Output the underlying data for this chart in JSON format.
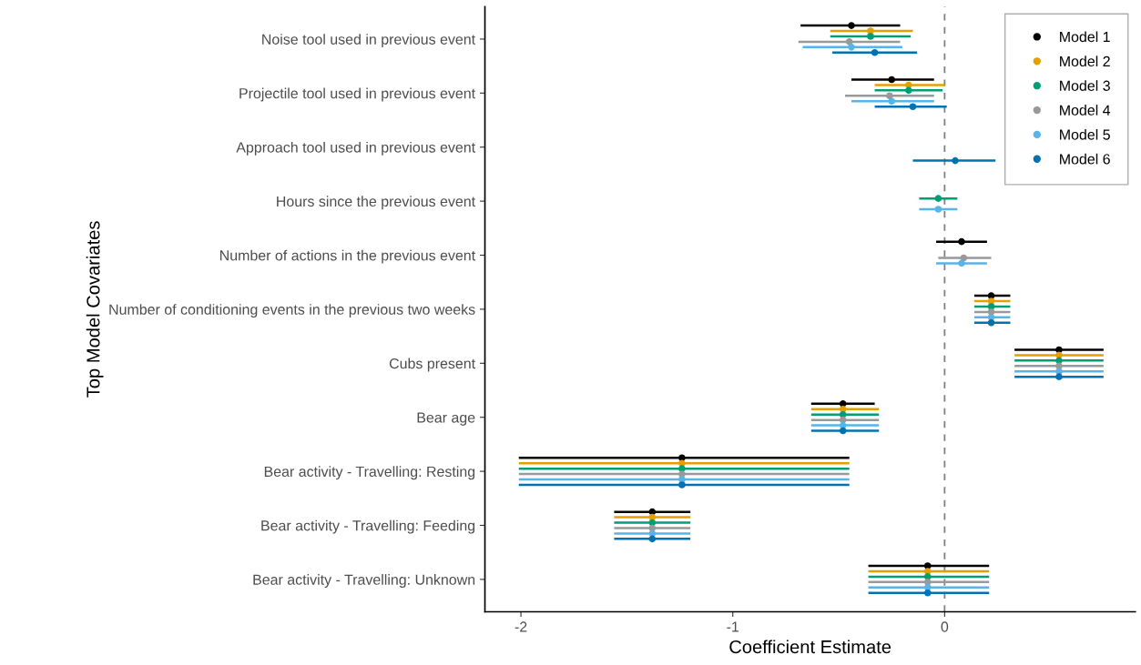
{
  "chart_data": {
    "type": "scatter",
    "orientation": "horizontal",
    "xlabel": "Coefficient Estimate",
    "ylabel": "Top Model Covariates",
    "categories": [
      "Noise tool used in previous event",
      "Projectile tool used in previous event",
      "Approach tool used in previous event",
      "Hours since the previous event",
      "Number of actions in the previous event",
      "Number of conditioning events in the previous two weeks",
      "Cubs present",
      "Bear age",
      "Bear activity - Travelling: Resting",
      "Bear activity - Travelling: Feeding",
      "Bear activity - Travelling: Unknown"
    ],
    "series": [
      {
        "name": "Model 1",
        "color": "#000000",
        "values": [
          -0.44,
          -0.25,
          null,
          null,
          0.08,
          0.22,
          0.54,
          -0.48,
          -1.24,
          -1.38,
          -0.08
        ],
        "errors": [
          [
            -0.68,
            -0.21
          ],
          [
            -0.44,
            -0.05
          ],
          null,
          null,
          [
            -0.04,
            0.2
          ],
          [
            0.14,
            0.31
          ],
          [
            0.33,
            0.75
          ],
          [
            -0.63,
            -0.33
          ],
          [
            -2.01,
            -0.45
          ],
          [
            -1.56,
            -1.2
          ],
          [
            -0.36,
            0.21
          ]
        ]
      },
      {
        "name": "Model 2",
        "color": "#e69f00",
        "values": [
          -0.35,
          -0.17,
          null,
          null,
          null,
          0.22,
          0.54,
          -0.48,
          -1.24,
          -1.38,
          -0.08
        ],
        "errors": [
          [
            -0.54,
            -0.15
          ],
          [
            -0.33,
            0.0
          ],
          null,
          null,
          null,
          [
            0.14,
            0.31
          ],
          [
            0.33,
            0.75
          ],
          [
            -0.63,
            -0.31
          ],
          [
            -2.01,
            -0.45
          ],
          [
            -1.56,
            -1.2
          ],
          [
            -0.36,
            0.21
          ]
        ]
      },
      {
        "name": "Model 3",
        "color": "#009e73",
        "values": [
          -0.35,
          -0.17,
          null,
          -0.03,
          null,
          0.22,
          0.54,
          -0.48,
          -1.24,
          -1.38,
          -0.08
        ],
        "errors": [
          [
            -0.54,
            -0.16
          ],
          [
            -0.33,
            -0.01
          ],
          null,
          [
            -0.12,
            0.06
          ],
          null,
          [
            0.14,
            0.31
          ],
          [
            0.33,
            0.75
          ],
          [
            -0.63,
            -0.31
          ],
          [
            -2.01,
            -0.45
          ],
          [
            -1.56,
            -1.2
          ],
          [
            -0.36,
            0.21
          ]
        ]
      },
      {
        "name": "Model 4",
        "color": "#999999",
        "values": [
          -0.45,
          -0.26,
          null,
          null,
          0.09,
          0.22,
          0.54,
          -0.48,
          -1.24,
          -1.38,
          -0.08
        ],
        "errors": [
          [
            -0.69,
            -0.21
          ],
          [
            -0.47,
            -0.05
          ],
          null,
          null,
          [
            -0.03,
            0.22
          ],
          [
            0.14,
            0.31
          ],
          [
            0.33,
            0.75
          ],
          [
            -0.63,
            -0.31
          ],
          [
            -2.01,
            -0.45
          ],
          [
            -1.56,
            -1.2
          ],
          [
            -0.36,
            0.21
          ]
        ]
      },
      {
        "name": "Model 5",
        "color": "#56b4e9",
        "values": [
          -0.44,
          -0.25,
          null,
          -0.03,
          0.08,
          0.22,
          0.54,
          -0.48,
          -1.24,
          -1.38,
          -0.08
        ],
        "errors": [
          [
            -0.67,
            -0.2
          ],
          [
            -0.44,
            -0.05
          ],
          null,
          [
            -0.12,
            0.06
          ],
          [
            -0.04,
            0.2
          ],
          [
            0.14,
            0.31
          ],
          [
            0.33,
            0.75
          ],
          [
            -0.63,
            -0.31
          ],
          [
            -2.01,
            -0.45
          ],
          [
            -1.56,
            -1.2
          ],
          [
            -0.36,
            0.21
          ]
        ]
      },
      {
        "name": "Model 6",
        "color": "#0072b2",
        "values": [
          -0.33,
          -0.15,
          0.05,
          null,
          null,
          0.22,
          0.54,
          -0.48,
          -1.24,
          -1.38,
          -0.08
        ],
        "errors": [
          [
            -0.53,
            -0.13
          ],
          [
            -0.33,
            0.01
          ],
          [
            -0.15,
            0.24
          ],
          null,
          null,
          [
            0.14,
            0.31
          ],
          [
            0.33,
            0.75
          ],
          [
            -0.63,
            -0.31
          ],
          [
            -2.01,
            -0.45
          ],
          [
            -1.56,
            -1.2
          ],
          [
            -0.36,
            0.21
          ]
        ]
      }
    ],
    "xlim": [
      -2.17,
      0.9
    ],
    "xticks": [
      -2,
      -1,
      0
    ],
    "ref_lines": [
      {
        "axis": "x",
        "value": 0,
        "color": "#808080",
        "line_style": "dashed"
      }
    ],
    "marker": "circle",
    "legend": "top right",
    "grid": false
  }
}
